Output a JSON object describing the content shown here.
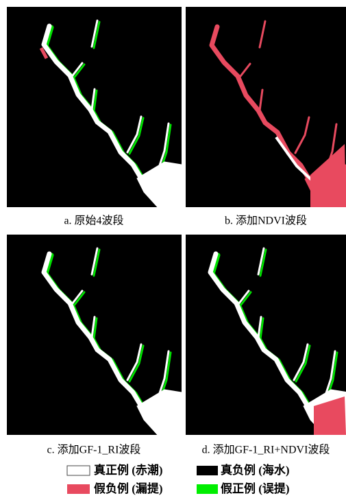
{
  "figure": {
    "panels": [
      {
        "caption": "a. 原始4波段"
      },
      {
        "caption": "b. 添加NDVI波段"
      },
      {
        "caption": "c. 添加GF-1_RI波段"
      },
      {
        "caption": "d. 添加GF-1_RI+NDVI波段"
      }
    ],
    "legend": [
      {
        "label": "真正例 (赤潮)"
      },
      {
        "label": "真负例 (海水)"
      },
      {
        "label": "假负例 (漏提)"
      },
      {
        "label": "假正例 (误提)"
      }
    ]
  }
}
